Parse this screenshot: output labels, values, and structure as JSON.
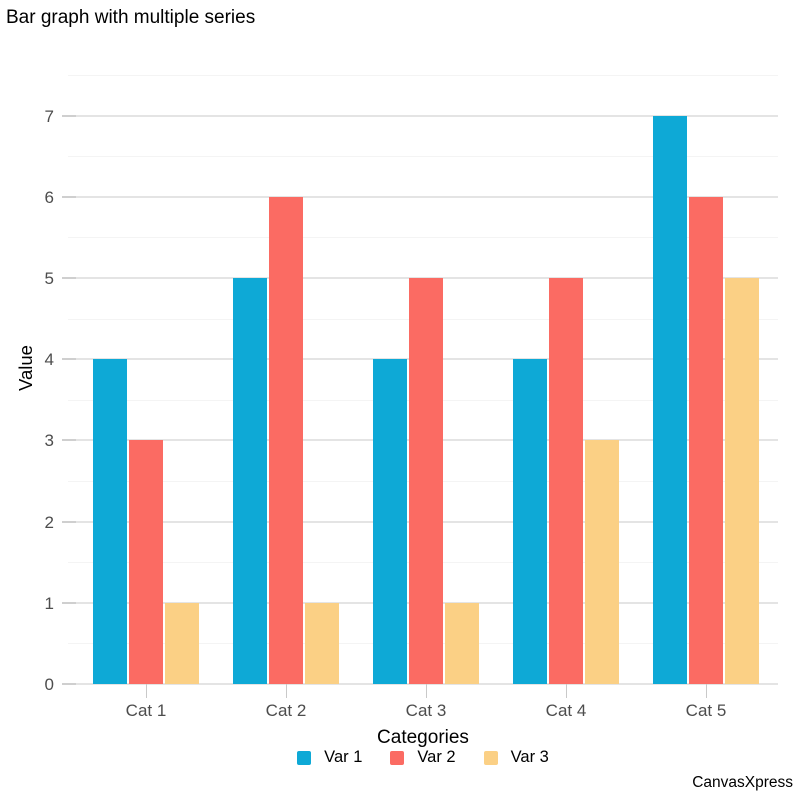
{
  "title": "Bar graph with multiple series",
  "branding": "CanvasXpress",
  "colors": {
    "series": [
      "#0EA9D6",
      "#FB6B63",
      "#FBD085"
    ],
    "grid_major": "#e4e4e4",
    "grid_minor": "#f4f4f4",
    "tick_stub": "#cfcfcf",
    "tick_label": "#4d4d4d",
    "text": "#000000"
  },
  "chart_data": {
    "type": "bar",
    "title": "Bar graph with multiple series",
    "categories": [
      "Cat 1",
      "Cat 2",
      "Cat 3",
      "Cat 4",
      "Cat 5"
    ],
    "series": [
      {
        "name": "Var 1",
        "color": "#0EA9D6",
        "values": [
          4,
          5,
          4,
          4,
          7
        ]
      },
      {
        "name": "Var 2",
        "color": "#FB6B63",
        "values": [
          3,
          6,
          5,
          5,
          6
        ]
      },
      {
        "name": "Var 3",
        "color": "#FBD085",
        "values": [
          1,
          1,
          1,
          3,
          5
        ]
      }
    ],
    "xlabel": "Categories",
    "ylabel": "Value",
    "ylim": [
      0,
      7.5
    ],
    "yticks": [
      0,
      1,
      2,
      3,
      4,
      5,
      6,
      7
    ],
    "minor_grid_step": 0.5,
    "grid": true,
    "legend_position": "bottom"
  }
}
